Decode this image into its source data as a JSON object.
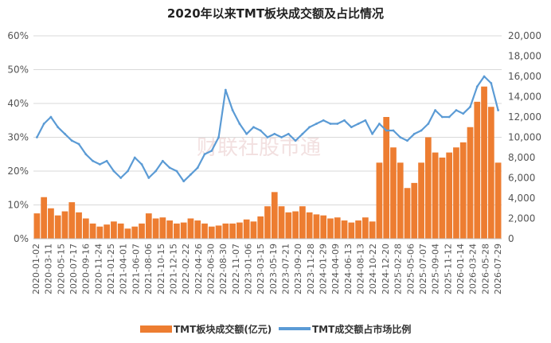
{
  "chart_data": {
    "type": "bar+line",
    "title": "2020年以来TMT板块成交额及占比情况",
    "watermark": "财联社股市通",
    "colors": {
      "bar": "#ED7D31",
      "line": "#5B9BD5"
    },
    "y_left": {
      "ticks": [
        "0%",
        "10%",
        "20%",
        "30%",
        "40%",
        "50%",
        "60%"
      ],
      "range": [
        0,
        60
      ],
      "unit": "%"
    },
    "y_right": {
      "ticks": [
        "0",
        "2,000",
        "4,000",
        "6,000",
        "8,000",
        "10,000",
        "12,000",
        "14,000",
        "16,000",
        "18,000",
        "20,000"
      ],
      "range": [
        0,
        20000
      ]
    },
    "x_ticks": [
      "2020-01-02",
      "2020-03-11",
      "2020-05-15",
      "2020-07-17",
      "2020-09-16",
      "2020-11-24",
      "2021-01-25",
      "2021-04-01",
      "2021-06-07",
      "2021-08-06",
      "2021-10-15",
      "2021-12-15",
      "2022-02-22",
      "2022-04-26",
      "2022-06-30",
      "2022-08-30",
      "2022-11-07",
      "2023-01-06",
      "2023-03-15",
      "2023-05-19",
      "2023-07-21",
      "2023-09-20",
      "2023-11-28",
      "2024-01-29",
      "2024-04-09",
      "2024-06-13",
      "2024-08-13",
      "2024-10-22",
      "2024-12-20",
      "2025-02-28",
      "2025-05-06",
      "2025-07-07",
      "2025-09-04",
      "2025-11-12",
      "2026-01-14",
      "2026-03-24",
      "2026-05-28",
      "2026-07-29"
    ],
    "series": [
      {
        "name": "TMT板块成交额(亿元)",
        "type": "bar",
        "axis": "right",
        "values": [
          2500,
          4100,
          3000,
          2300,
          2700,
          3600,
          2600,
          2000,
          1500,
          1200,
          1400,
          1700,
          1500,
          1000,
          1200,
          1500,
          2500,
          2000,
          2100,
          1800,
          1500,
          1600,
          2000,
          1800,
          1500,
          1200,
          1300,
          1500,
          1500,
          1600,
          1900,
          1700,
          2200,
          3200,
          4600,
          3200,
          2600,
          2700,
          3200,
          2600,
          2400,
          2300,
          2000,
          2100,
          1800,
          1600,
          1800,
          2100,
          1700,
          7500,
          12000,
          9000,
          7500,
          5000,
          5500,
          7500,
          10000,
          8500,
          8000,
          8500,
          9000,
          9500,
          11000,
          13500,
          15000,
          13000,
          7500
        ]
      },
      {
        "name": "TMT成交额占市场比例",
        "type": "line",
        "axis": "left",
        "values": [
          30,
          34,
          36,
          33,
          31,
          29,
          28,
          25,
          23,
          22,
          23,
          20,
          18,
          20,
          24,
          22,
          18,
          20,
          23,
          21,
          20,
          17,
          19,
          21,
          25,
          26,
          30,
          44,
          38,
          34,
          31,
          33,
          32,
          30,
          31,
          30,
          31,
          29,
          31,
          33,
          34,
          35,
          34,
          34,
          35,
          33,
          34,
          35,
          31,
          34,
          32,
          32,
          30,
          29,
          31,
          32,
          34,
          38,
          36,
          36,
          38,
          37,
          39,
          45,
          48,
          46,
          38
        ]
      }
    ],
    "legend_position": "bottom"
  }
}
